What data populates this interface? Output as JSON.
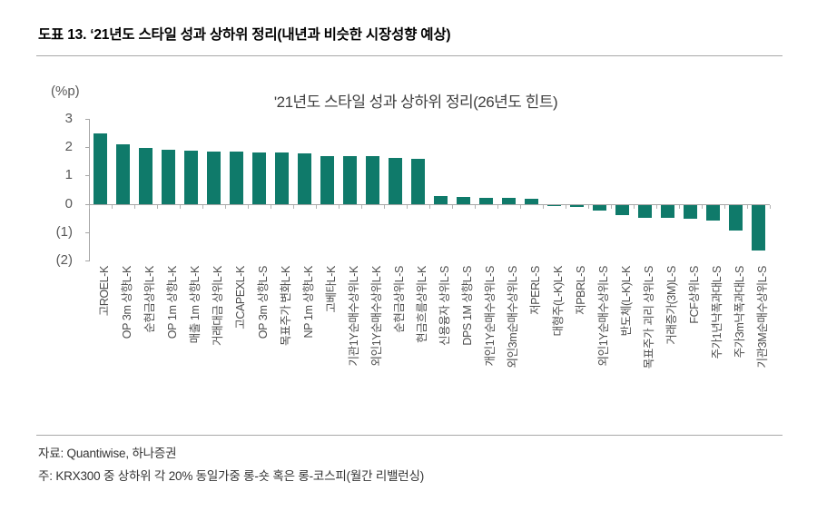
{
  "header": {
    "title": "도표 13. ‘21년도 스타일 성과 상하위 정리(내년과 비슷한 시장성향 예상)"
  },
  "chart": {
    "title": "'21년도 스타일 성과 상하위 정리(26년도 힌트)",
    "unit_label": "(%p)",
    "y_tick_labels": [
      "3",
      "2",
      "1",
      "0",
      "(1)",
      "(2)"
    ]
  },
  "chart_data": {
    "type": "bar",
    "title": "'21년도 스타일 성과 상하위 정리(26년도 힌트)",
    "xlabel": "",
    "ylabel": "(%p)",
    "ylim": [
      -2,
      3
    ],
    "grid": false,
    "legend": "none",
    "bar_color": "#0f7a6a",
    "categories": [
      "고ROEL-K",
      "OP 3m 상향L-K",
      "순현금상위L-K",
      "OP 1m 상향L-K",
      "매출 1m 상향L-K",
      "거래대금 상위L-K",
      "고CAPEXL-K",
      "OP 3m 상향L-S",
      "목표주가 변화L-K",
      "NP 1m 상향L-K",
      "고베타L-K",
      "기관1Y순매수상위L-K",
      "외인1Y순매수상위L-K",
      "순현금상위L-S",
      "현금흐름상위L-K",
      "신용융자 상위L-S",
      "DPS 1M 상향L-S",
      "개인1Y순매수상위L-S",
      "외인3m순매수상위L-S",
      "저PERL-S",
      "대형주(L-K)L-K",
      "저PBRL-S",
      "외인1Y순매수상위L-S",
      "반도체(L-K)L-K",
      "목표주가 괴리 상위L-S",
      "거래증가(3M)L-S",
      "FCF상위L-S",
      "주가1년낙폭과대L-S",
      "주가3m낙폭과대L-S",
      "기관3M순매수상위L-S"
    ],
    "values": [
      2.5,
      2.1,
      1.97,
      1.9,
      1.88,
      1.85,
      1.84,
      1.82,
      1.8,
      1.77,
      1.7,
      1.69,
      1.68,
      1.62,
      1.58,
      0.28,
      0.25,
      0.22,
      0.22,
      0.18,
      -0.03,
      -0.08,
      -0.2,
      -0.38,
      -0.45,
      -0.45,
      -0.48,
      -0.55,
      -0.9,
      -1.6
    ]
  },
  "footer": {
    "source": "자료: Quantiwise, 하나증권",
    "note": "주: KRX300 중 상하위 각 20% 동일가중 롱-숏 혹은 롱-코스피(월간 리밸런싱)"
  }
}
